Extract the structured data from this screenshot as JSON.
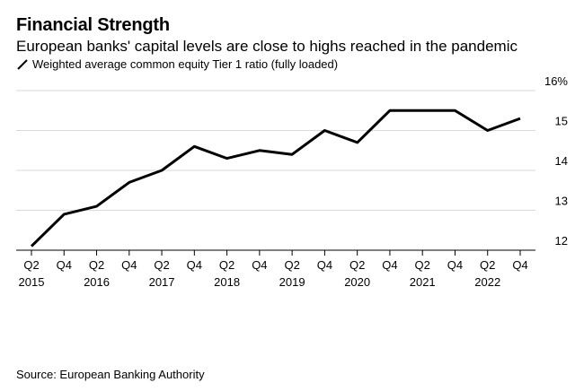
{
  "title": "Financial Strength",
  "subtitle": "European banks' capital levels are close to highs reached in the pandemic",
  "legend": {
    "label": "Weighted average common equity Tier 1 ratio (fully loaded)",
    "icon": "line-swatch-icon"
  },
  "source": "Source: European Banking Authority",
  "colors": {
    "line": "#000000",
    "grid": "#d9d9d9",
    "text": "#000000"
  },
  "chart_data": {
    "type": "line",
    "title": "Financial Strength",
    "xlabel": "",
    "ylabel": "",
    "ylim": [
      12,
      16
    ],
    "yticks": [
      12,
      13,
      14,
      15,
      16
    ],
    "ytick_labels": [
      "12",
      "13",
      "14",
      "15",
      "16%"
    ],
    "grid": true,
    "x_quarters": [
      "Q2",
      "Q4",
      "Q2",
      "Q4",
      "Q2",
      "Q4",
      "Q2",
      "Q4",
      "Q2",
      "Q4",
      "Q2",
      "Q4",
      "Q2",
      "Q4",
      "Q2",
      "Q4"
    ],
    "x_years": [
      "2015",
      "2016",
      "2017",
      "2018",
      "2019",
      "2020",
      "2021",
      "2022"
    ],
    "series": [
      {
        "name": "Weighted average common equity Tier 1 ratio (fully loaded)",
        "values": [
          12.1,
          12.9,
          13.1,
          13.7,
          14.0,
          14.6,
          14.3,
          14.5,
          14.4,
          15.0,
          14.7,
          15.5,
          15.5,
          15.5,
          15.0,
          15.3
        ]
      }
    ]
  }
}
